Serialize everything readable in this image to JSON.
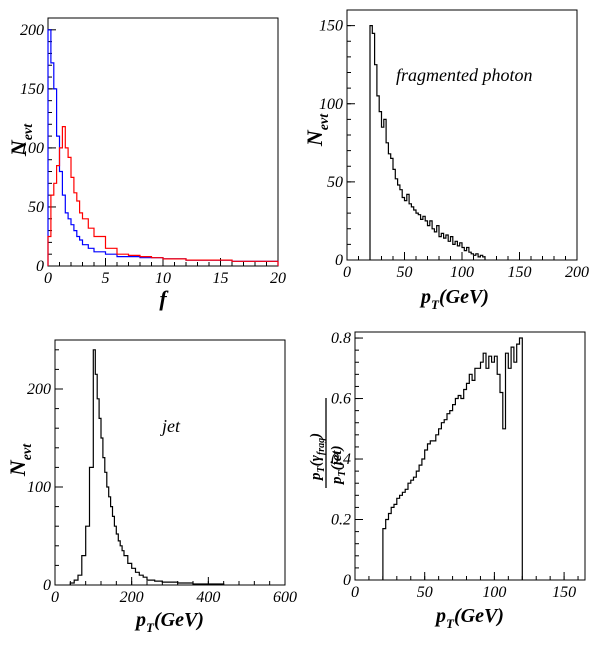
{
  "chart_data": [
    {
      "type": "histogram",
      "xlim": [
        0,
        20
      ],
      "ylim": [
        0,
        210
      ],
      "xticks": [
        0,
        5,
        10,
        15,
        20
      ],
      "yticks": [
        0,
        50,
        100,
        150,
        200
      ],
      "xlabel": "f",
      "ylabel": "N_evt",
      "series": [
        {
          "color": "#0000ff",
          "bins": [
            0,
            0.25,
            0.5,
            0.75,
            1,
            1.25,
            1.5,
            1.75,
            2,
            2.25,
            2.5,
            2.75,
            3,
            3.5,
            4,
            5,
            6,
            7,
            8,
            9,
            10,
            12,
            14,
            16,
            18,
            20
          ],
          "values": [
            200,
            172,
            150,
            110,
            80,
            60,
            45,
            40,
            35,
            30,
            25,
            22,
            18,
            15,
            12,
            10,
            8,
            8,
            7,
            7,
            6,
            5,
            5,
            4,
            4
          ]
        },
        {
          "color": "#ff0000",
          "bins": [
            0,
            0.25,
            0.5,
            0.75,
            1,
            1.25,
            1.5,
            1.75,
            2,
            2.25,
            2.5,
            2.75,
            3,
            3.5,
            4,
            5,
            6,
            7,
            8,
            9,
            10,
            12,
            14,
            16,
            18,
            20
          ],
          "values": [
            25,
            60,
            70,
            85,
            100,
            118,
            100,
            92,
            75,
            62,
            55,
            45,
            40,
            32,
            25,
            15,
            10,
            9,
            8,
            7,
            6,
            5,
            5,
            4,
            4
          ]
        }
      ]
    },
    {
      "type": "histogram",
      "xlim": [
        0,
        200
      ],
      "ylim": [
        0,
        160
      ],
      "xticks": [
        0,
        50,
        100,
        150,
        200
      ],
      "xticklabels": [
        "0",
        "50",
        "100",
        "150",
        "200"
      ],
      "yticks": [
        0,
        50,
        100,
        150
      ],
      "xlabel": "p_T(GeV)",
      "ylabel": "N_evt",
      "annotation": "fragmented photon",
      "series": [
        {
          "color": "#000000",
          "bins": [
            20,
            22,
            24,
            26,
            28,
            30,
            32,
            34,
            36,
            38,
            40,
            42,
            44,
            46,
            48,
            50,
            52,
            54,
            56,
            58,
            60,
            62,
            64,
            66,
            68,
            70,
            72,
            74,
            76,
            78,
            80,
            82,
            84,
            86,
            88,
            90,
            92,
            94,
            96,
            98,
            100,
            102,
            104,
            106,
            108,
            110,
            112,
            114,
            116,
            118,
            120
          ],
          "values": [
            150,
            145,
            125,
            105,
            95,
            85,
            90,
            75,
            68,
            65,
            58,
            52,
            48,
            45,
            40,
            38,
            42,
            36,
            34,
            32,
            30,
            29,
            26,
            28,
            25,
            22,
            25,
            20,
            18,
            22,
            15,
            17,
            14,
            16,
            12,
            15,
            10,
            12,
            9,
            11,
            8,
            6,
            8,
            5,
            4,
            3,
            4,
            2,
            3,
            2
          ]
        }
      ]
    },
    {
      "type": "histogram",
      "xlim": [
        0,
        600
      ],
      "ylim": [
        0,
        250
      ],
      "xticks": [
        0,
        200,
        400,
        600
      ],
      "xticklabels": [
        "0",
        "200",
        "400",
        "600"
      ],
      "yticks": [
        0,
        100,
        200
      ],
      "xlabel": "p_T(GeV)",
      "ylabel": "N_evt",
      "annotation": "jet",
      "series": [
        {
          "color": "#000000",
          "bins": [
            40,
            50,
            60,
            70,
            80,
            90,
            100,
            105,
            110,
            115,
            120,
            125,
            130,
            135,
            140,
            145,
            150,
            155,
            160,
            165,
            170,
            175,
            180,
            190,
            200,
            210,
            220,
            230,
            240,
            260,
            280,
            300,
            320,
            340,
            360,
            380,
            400,
            420,
            440
          ],
          "values": [
            2,
            5,
            10,
            30,
            60,
            120,
            240,
            215,
            190,
            170,
            150,
            130,
            115,
            100,
            90,
            80,
            70,
            60,
            52,
            45,
            40,
            35,
            30,
            22,
            17,
            13,
            10,
            8,
            5,
            4,
            3,
            3,
            2,
            2,
            1,
            1,
            1,
            1
          ]
        }
      ]
    },
    {
      "type": "histogram",
      "xlim": [
        0,
        165
      ],
      "ylim": [
        0,
        0.82
      ],
      "xticks": [
        0,
        50,
        100,
        150
      ],
      "yticks": [
        0,
        0.2,
        0.4,
        0.6,
        0.8
      ],
      "xlabel": "p_T(GeV)",
      "ylabel": "p_T(γ_frag) / p_T(jet)",
      "series": [
        {
          "color": "#000000",
          "bins": [
            20,
            22,
            24,
            26,
            28,
            30,
            32,
            34,
            36,
            38,
            40,
            42,
            44,
            46,
            48,
            50,
            52,
            54,
            56,
            58,
            60,
            62,
            64,
            66,
            68,
            70,
            72,
            74,
            76,
            78,
            80,
            82,
            84,
            86,
            88,
            90,
            92,
            94,
            96,
            98,
            100,
            102,
            104,
            106,
            108,
            110,
            112,
            114,
            116,
            118,
            120
          ],
          "values": [
            0.17,
            0.2,
            0.22,
            0.24,
            0.25,
            0.27,
            0.28,
            0.29,
            0.3,
            0.32,
            0.33,
            0.34,
            0.36,
            0.38,
            0.4,
            0.43,
            0.45,
            0.46,
            0.46,
            0.48,
            0.5,
            0.52,
            0.53,
            0.55,
            0.56,
            0.58,
            0.6,
            0.61,
            0.6,
            0.63,
            0.65,
            0.68,
            0.66,
            0.7,
            0.7,
            0.72,
            0.75,
            0.7,
            0.74,
            0.72,
            0.74,
            0.68,
            0.62,
            0.5,
            0.75,
            0.7,
            0.77,
            0.72,
            0.78,
            0.8
          ]
        }
      ]
    }
  ]
}
